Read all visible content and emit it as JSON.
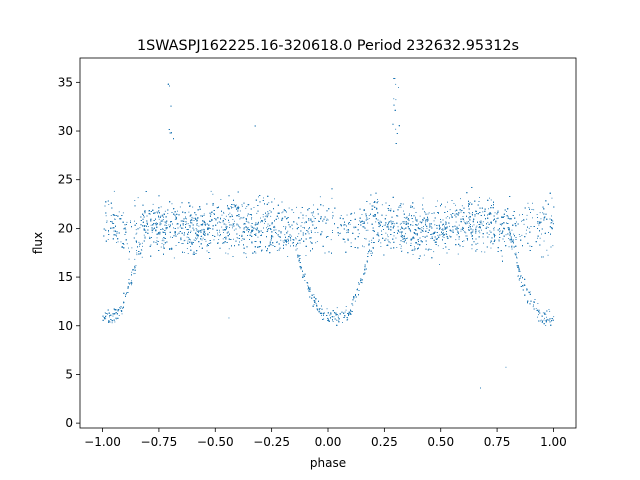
{
  "chart_data": {
    "type": "scatter",
    "title": "1SWASPJ162225.16-320618.0 Period 232632.95312s",
    "xlabel": "phase",
    "ylabel": "flux",
    "xlim": [
      -1.1,
      1.1
    ],
    "ylim": [
      -0.5,
      37.5
    ],
    "xticks": [
      -1.0,
      -0.75,
      -0.5,
      -0.25,
      0.0,
      0.25,
      0.5,
      0.75,
      1.0
    ],
    "xtick_labels": [
      "−1.00",
      "−0.75",
      "−0.50",
      "−0.25",
      "0.00",
      "0.25",
      "0.50",
      "0.75",
      "1.00"
    ],
    "yticks": [
      0,
      5,
      10,
      15,
      20,
      25,
      30,
      35
    ],
    "ytick_labels": [
      "0",
      "5",
      "10",
      "15",
      "20",
      "25",
      "30",
      "35"
    ],
    "grid": false,
    "marker_color": "#1f77b4",
    "series": [
      {
        "phase": [
          -1.0,
          -0.98,
          -0.96,
          -0.94,
          -0.92,
          -0.9,
          -0.88,
          -0.86,
          -0.84,
          -0.82,
          -0.8,
          -0.78,
          -0.75,
          -0.72,
          -0.7,
          -0.68,
          -0.65,
          -0.6,
          -0.55,
          -0.5,
          -0.45,
          -0.4,
          -0.35,
          -0.3,
          -0.25,
          -0.2,
          -0.15,
          -0.12,
          -0.1,
          -0.08,
          -0.06,
          -0.04,
          -0.02,
          0.0,
          0.02,
          0.04,
          0.06,
          0.08,
          0.1,
          0.12,
          0.14,
          0.16,
          0.18,
          0.2,
          0.22,
          0.25,
          0.28,
          0.3,
          0.32,
          0.35,
          0.4,
          0.45,
          0.5,
          0.55,
          0.6,
          0.65,
          0.7,
          0.75,
          0.8,
          0.82,
          0.84,
          0.86,
          0.88,
          0.9,
          0.92,
          0.94,
          0.96,
          0.98,
          1.0
        ],
        "flux_upper_mean": [
          20.5,
          20.5,
          20.3,
          20.2,
          20.0,
          19.8,
          19.8,
          19.8,
          20.2,
          20.5,
          20.8,
          20.6,
          20.3,
          20.0,
          20.0,
          20.2,
          20.0,
          19.8,
          20.0,
          20.3,
          20.5,
          20.5,
          20.4,
          20.3,
          20.3,
          20.0,
          19.8,
          19.8,
          20.0,
          20.2,
          20.5,
          20.6,
          20.6,
          20.5,
          20.5,
          20.3,
          20.2,
          20.0,
          19.8,
          19.8,
          19.8,
          20.2,
          20.5,
          20.8,
          20.6,
          20.3,
          20.0,
          20.0,
          20.2,
          20.0,
          19.8,
          20.0,
          20.3,
          20.5,
          20.5,
          20.4,
          20.3,
          20.3,
          20.0,
          19.8,
          19.8,
          20.0,
          20.2,
          20.5,
          20.6,
          20.6,
          20.5,
          20.5,
          20.5
        ],
        "flux_dip_min": [
          10.0,
          10.0,
          10.0,
          10.2,
          10.8,
          12.0,
          13.5,
          15.0,
          17.0,
          null,
          null,
          null,
          null,
          null,
          null,
          null,
          null,
          null,
          null,
          null,
          null,
          null,
          null,
          null,
          null,
          null,
          18.0,
          15.0,
          13.5,
          12.5,
          11.5,
          10.8,
          10.2,
          10.0,
          10.0,
          10.0,
          10.0,
          10.2,
          10.8,
          12.0,
          13.5,
          15.0,
          17.0,
          null,
          null,
          null,
          null,
          null,
          null,
          null,
          null,
          null,
          null,
          null,
          null,
          null,
          null,
          null,
          null,
          18.0,
          15.0,
          13.5,
          12.5,
          11.5,
          10.8,
          10.2,
          10.0,
          10.0,
          10.0
        ],
        "flux_spike_phase": [
          -0.7,
          0.3
        ],
        "flux_spike_max": [
          35.5,
          35.5
        ]
      }
    ]
  }
}
